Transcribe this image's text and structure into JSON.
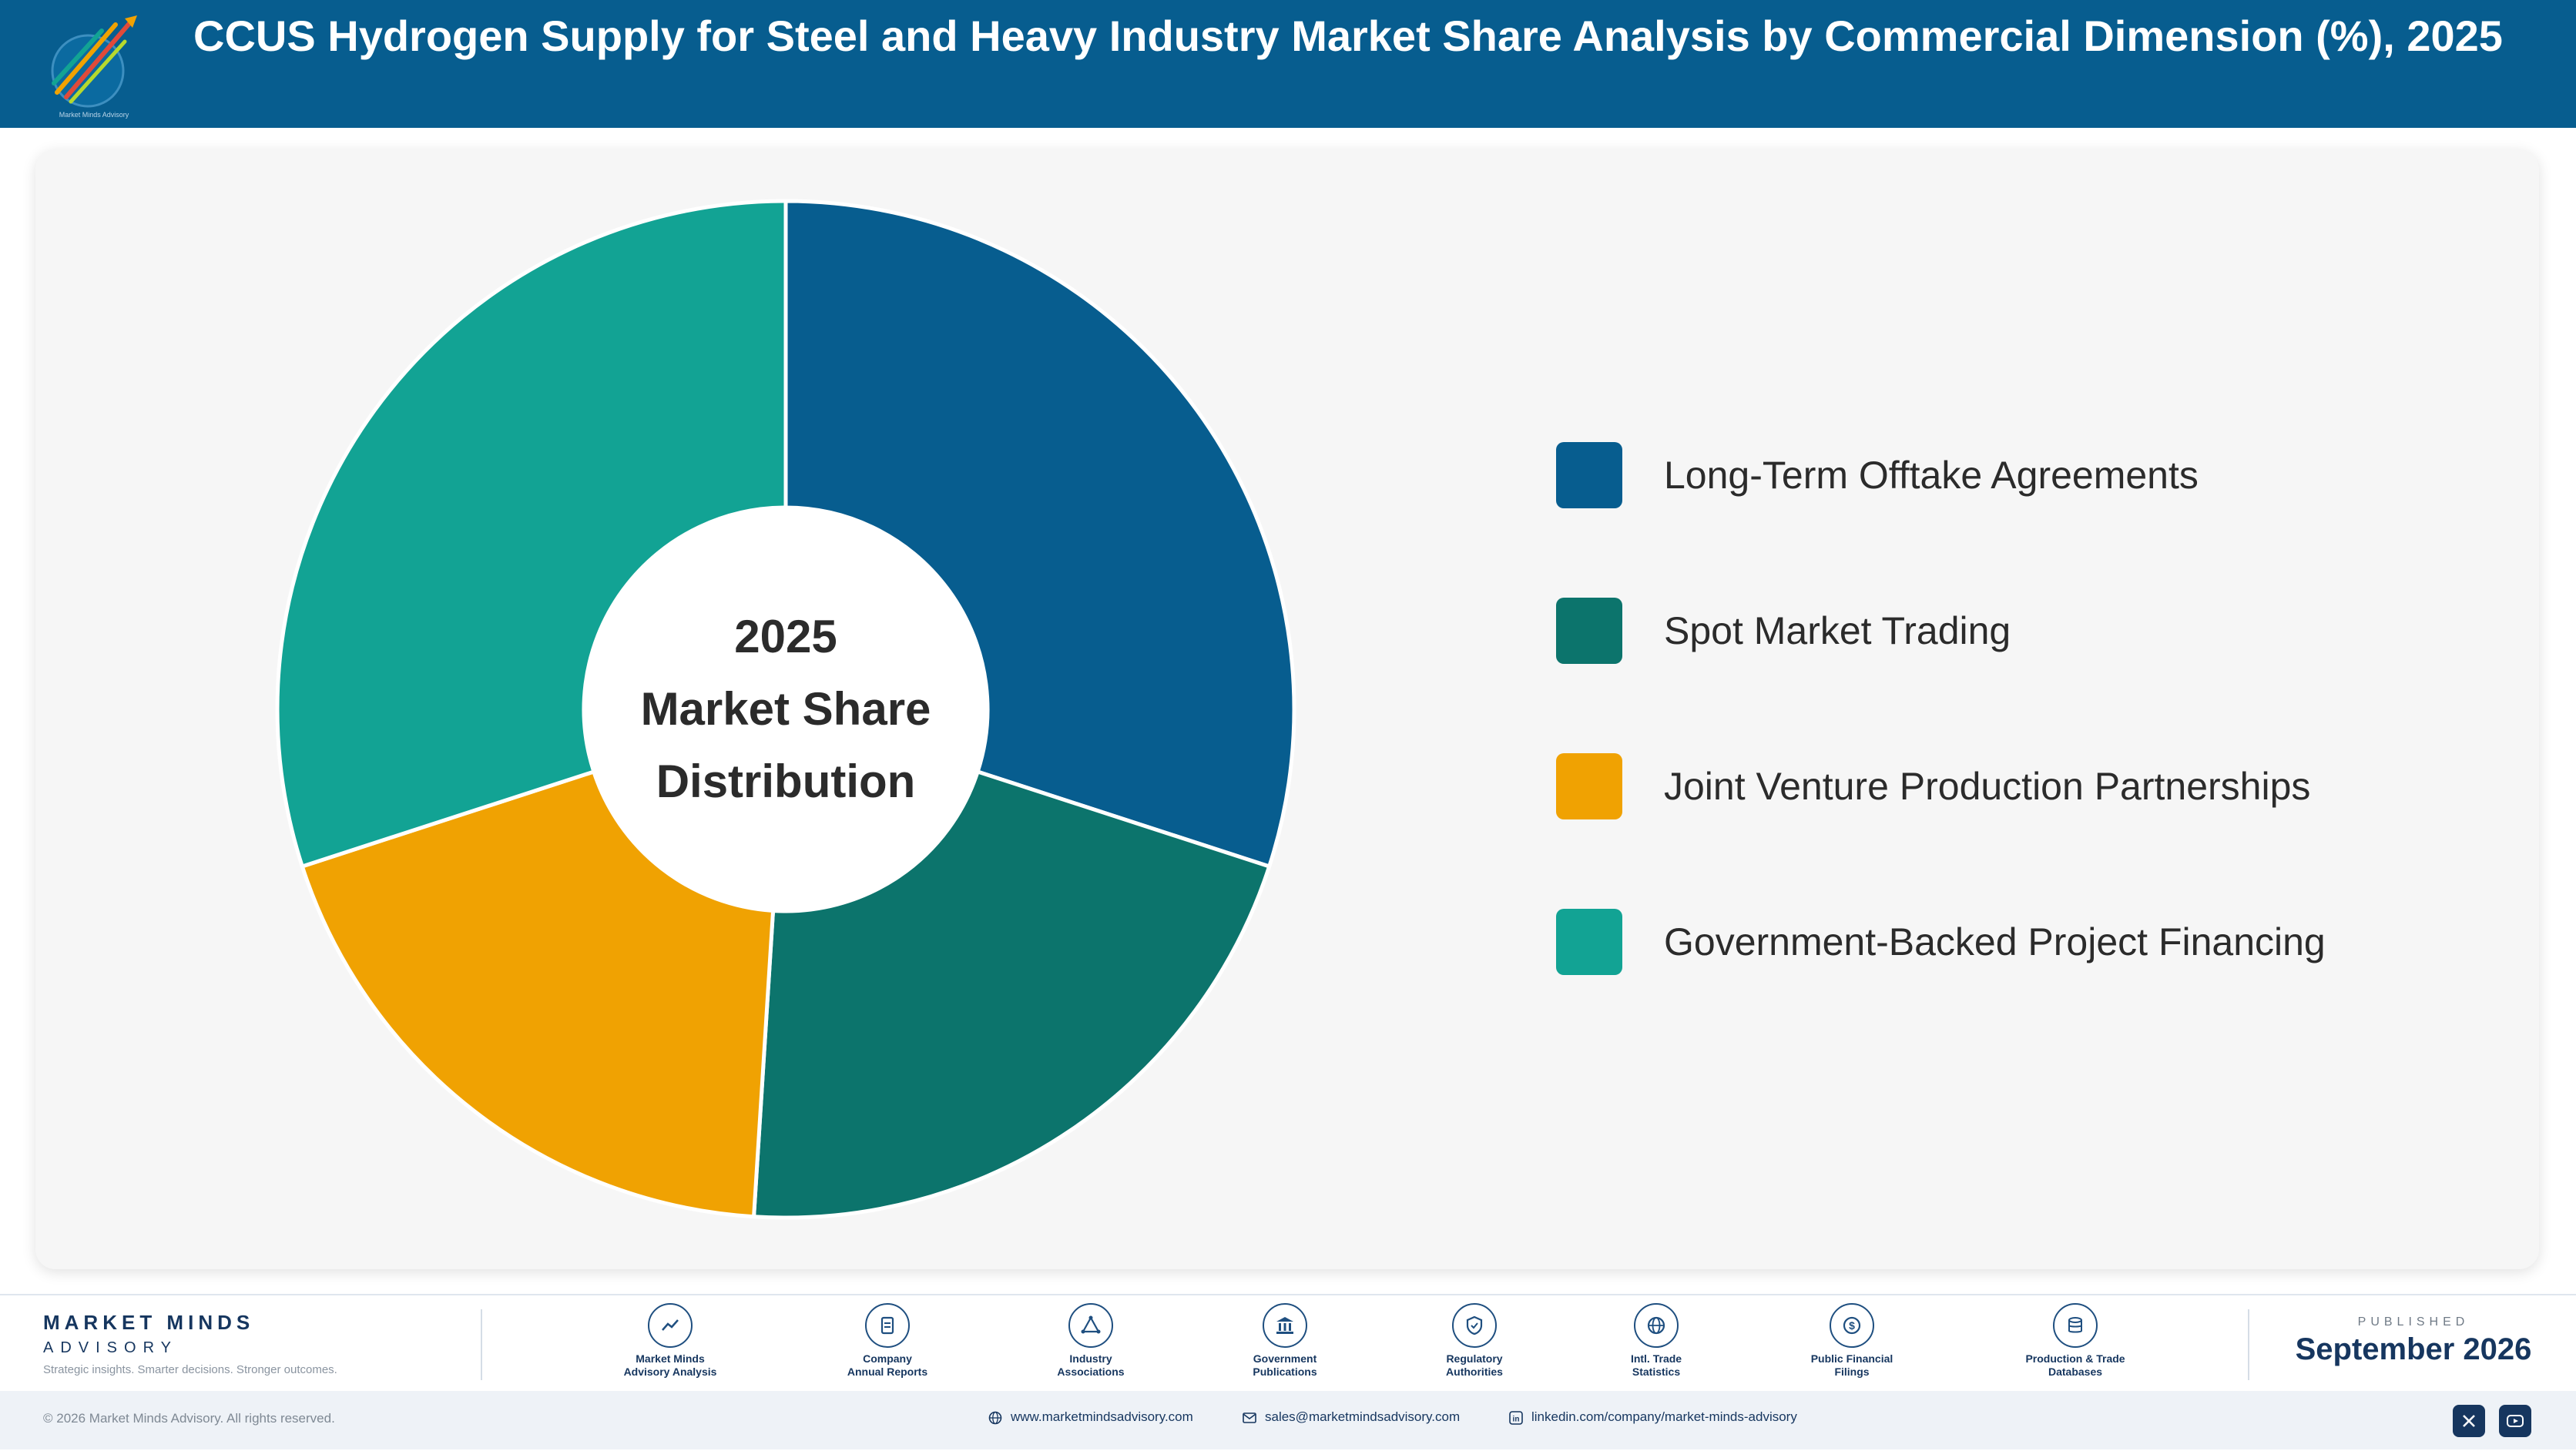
{
  "header": {
    "title": "CCUS Hydrogen Supply for Steel and Heavy Industry Market Share Analysis by Commercial Dimension (%), 2025",
    "logo_icon": "market-minds-logo-icon",
    "logo_text": "Market Minds Advisory"
  },
  "center_label": [
    "2025",
    "Market Share",
    "Distribution"
  ],
  "chart_data": {
    "type": "pie",
    "title": "CCUS Hydrogen Supply for Steel and Heavy Industry Market Share Analysis by Commercial Dimension (%), 2025",
    "categories": [
      "Long-Term Offtake Agreements",
      "Spot Market Trading",
      "Joint Venture Production Partnerships",
      "Government-Backed Project Financing"
    ],
    "values": [
      30,
      21,
      19,
      30
    ],
    "colors": [
      "#075d8f",
      "#0c746c",
      "#f0a202",
      "#12a394"
    ],
    "donut": true,
    "legend_position": "right"
  },
  "footer": {
    "brand_name": "MARKET MINDS",
    "brand_sub": "ADVISORY",
    "brand_tagline": "Strategic insights. Smarter decisions. Stronger outcomes.",
    "sources": [
      {
        "label": "Market Minds\nAdvisory Analysis",
        "icon": "chart-line-icon"
      },
      {
        "label": "Company\nAnnual Reports",
        "icon": "document-icon"
      },
      {
        "label": "Industry\nAssociations",
        "icon": "network-icon"
      },
      {
        "label": "Government\nPublications",
        "icon": "government-building-icon"
      },
      {
        "label": "Regulatory\nAuthorities",
        "icon": "shield-icon"
      },
      {
        "label": "Intl. Trade\nStatistics",
        "icon": "globe-icon"
      },
      {
        "label": "Public Financial\nFilings",
        "icon": "dollar-icon"
      },
      {
        "label": "Production & Trade\nDatabases",
        "icon": "database-icon"
      }
    ],
    "published_label": "PUBLISHED",
    "published_date": "September 2026",
    "copyright": "© 2026 Market Minds Advisory. All rights reserved.",
    "website": "www.marketmindsadvisory.com",
    "email": "sales@marketmindsadvisory.com",
    "linkedin": "linkedin.com/company/market-minds-advisory"
  }
}
